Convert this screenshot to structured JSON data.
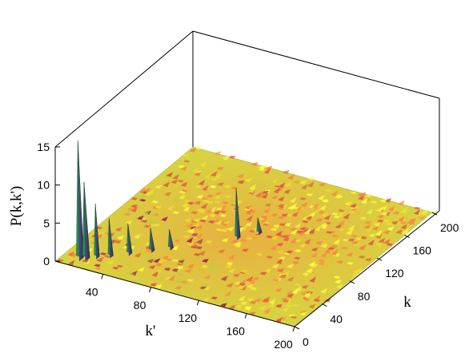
{
  "chart_data": {
    "type": "surface",
    "title": "",
    "zlabel": "P(k,k')",
    "xlabel": "k'",
    "ylabel": "k",
    "xlim": [
      0,
      200
    ],
    "ylim": [
      0,
      200
    ],
    "zlim": [
      0,
      15
    ],
    "x_ticks": [
      "40",
      "80",
      "120",
      "160",
      "200"
    ],
    "y_ticks": [
      "0",
      "40",
      "80",
      "120",
      "160",
      "200"
    ],
    "z_ticks": [
      "0",
      "5",
      "10",
      "15"
    ],
    "colormap": [
      "#ffff00",
      "#c8e040",
      "#ff4040",
      "#a01850",
      "#4a3a78",
      "#2e8b57"
    ],
    "base_color": "#c8e040",
    "peaks": [
      {
        "k_prime": 12,
        "k": 12,
        "height": 15.5
      },
      {
        "k_prime": 16,
        "k": 14,
        "height": 10
      },
      {
        "k_prime": 22,
        "k": 20,
        "height": 7
      },
      {
        "k_prime": 30,
        "k": 26,
        "height": 5
      },
      {
        "k_prime": 40,
        "k": 36,
        "height": 4
      },
      {
        "k_prime": 52,
        "k": 48,
        "height": 3
      },
      {
        "k_prime": 62,
        "k": 58,
        "height": 2.5
      },
      {
        "k_prime": 96,
        "k": 96,
        "height": 6.5
      },
      {
        "k_prime": 106,
        "k": 110,
        "height": 2
      }
    ]
  }
}
